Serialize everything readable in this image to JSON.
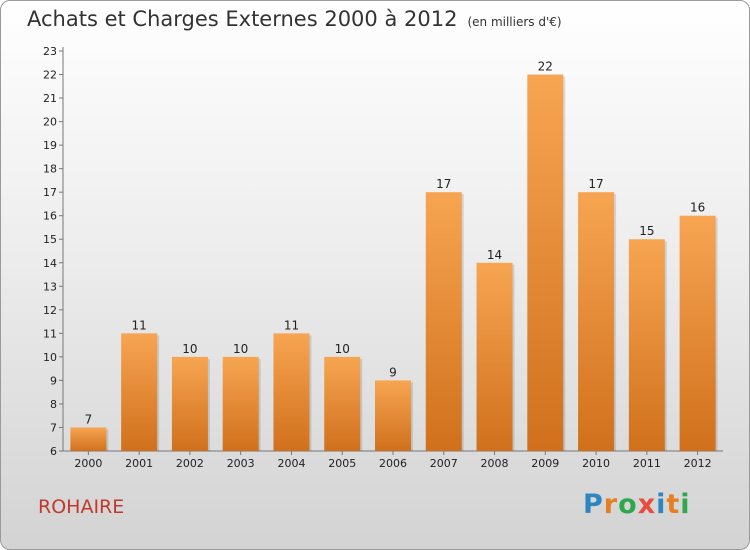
{
  "header": {
    "title": "Achats et Charges Externes 2000 à 2012",
    "unit": "(en milliers d'€)"
  },
  "footer": {
    "commune": "ROHAIRE",
    "logo_letters": [
      "P",
      "r",
      "o",
      "x",
      "i",
      "t",
      "i"
    ],
    "logo_colors": [
      "#2e86c1",
      "#e67e22",
      "#2ea84a",
      "#e74c3c",
      "#2e86c1",
      "#e67e22",
      "#2ea84a"
    ]
  },
  "chart_data": {
    "type": "bar",
    "categories": [
      "2000",
      "2001",
      "2002",
      "2003",
      "2004",
      "2005",
      "2006",
      "2007",
      "2008",
      "2009",
      "2010",
      "2011",
      "2012"
    ],
    "values": [
      7,
      11,
      10,
      10,
      11,
      10,
      9,
      17,
      14,
      22,
      17,
      15,
      16
    ],
    "ylim": [
      6,
      23
    ],
    "yticks": [
      "6",
      "7",
      "8",
      "9",
      "10",
      "11",
      "12",
      "13",
      "14",
      "15",
      "16",
      "17",
      "18",
      "19",
      "20",
      "21",
      "22",
      "23"
    ],
    "bar_color_top": "#f7a552",
    "bar_color_bottom": "#d0701c",
    "grid": false,
    "legend": "none"
  }
}
